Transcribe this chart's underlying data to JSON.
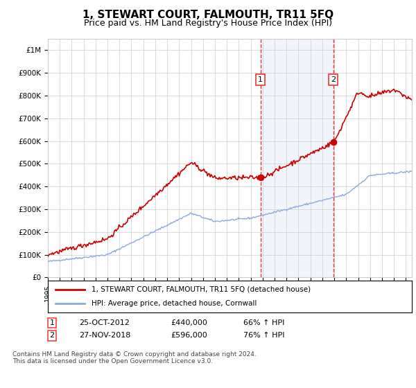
{
  "title": "1, STEWART COURT, FALMOUTH, TR11 5FQ",
  "subtitle": "Price paid vs. HM Land Registry's House Price Index (HPI)",
  "title_fontsize": 11,
  "subtitle_fontsize": 9,
  "ylabel_ticks": [
    "£0",
    "£100K",
    "£200K",
    "£300K",
    "£400K",
    "£500K",
    "£600K",
    "£700K",
    "£800K",
    "£900K",
    "£1M"
  ],
  "ytick_values": [
    0,
    100000,
    200000,
    300000,
    400000,
    500000,
    600000,
    700000,
    800000,
    900000,
    1000000
  ],
  "ylim": [
    0,
    1050000
  ],
  "xlim_start": 1995.0,
  "xlim_end": 2025.5,
  "sale1_date": 2012.82,
  "sale1_price": 440000,
  "sale1_label": "1",
  "sale2_date": 2018.92,
  "sale2_price": 596000,
  "sale2_label": "2",
  "sale_marker_color": "#cc0000",
  "hpi_line_color": "#88aadd",
  "price_line_color": "#cc0000",
  "dashed_line_color": "#ee3333",
  "shade_color": "#ccddf5",
  "legend_entries": [
    "1, STEWART COURT, FALMOUTH, TR11 5FQ (detached house)",
    "HPI: Average price, detached house, Cornwall"
  ],
  "footnote": "Contains HM Land Registry data © Crown copyright and database right 2024.\nThis data is licensed under the Open Government Licence v3.0.",
  "grid_color": "#cccccc",
  "background_color": "#ffffff",
  "plot_bg_color": "#ffffff"
}
